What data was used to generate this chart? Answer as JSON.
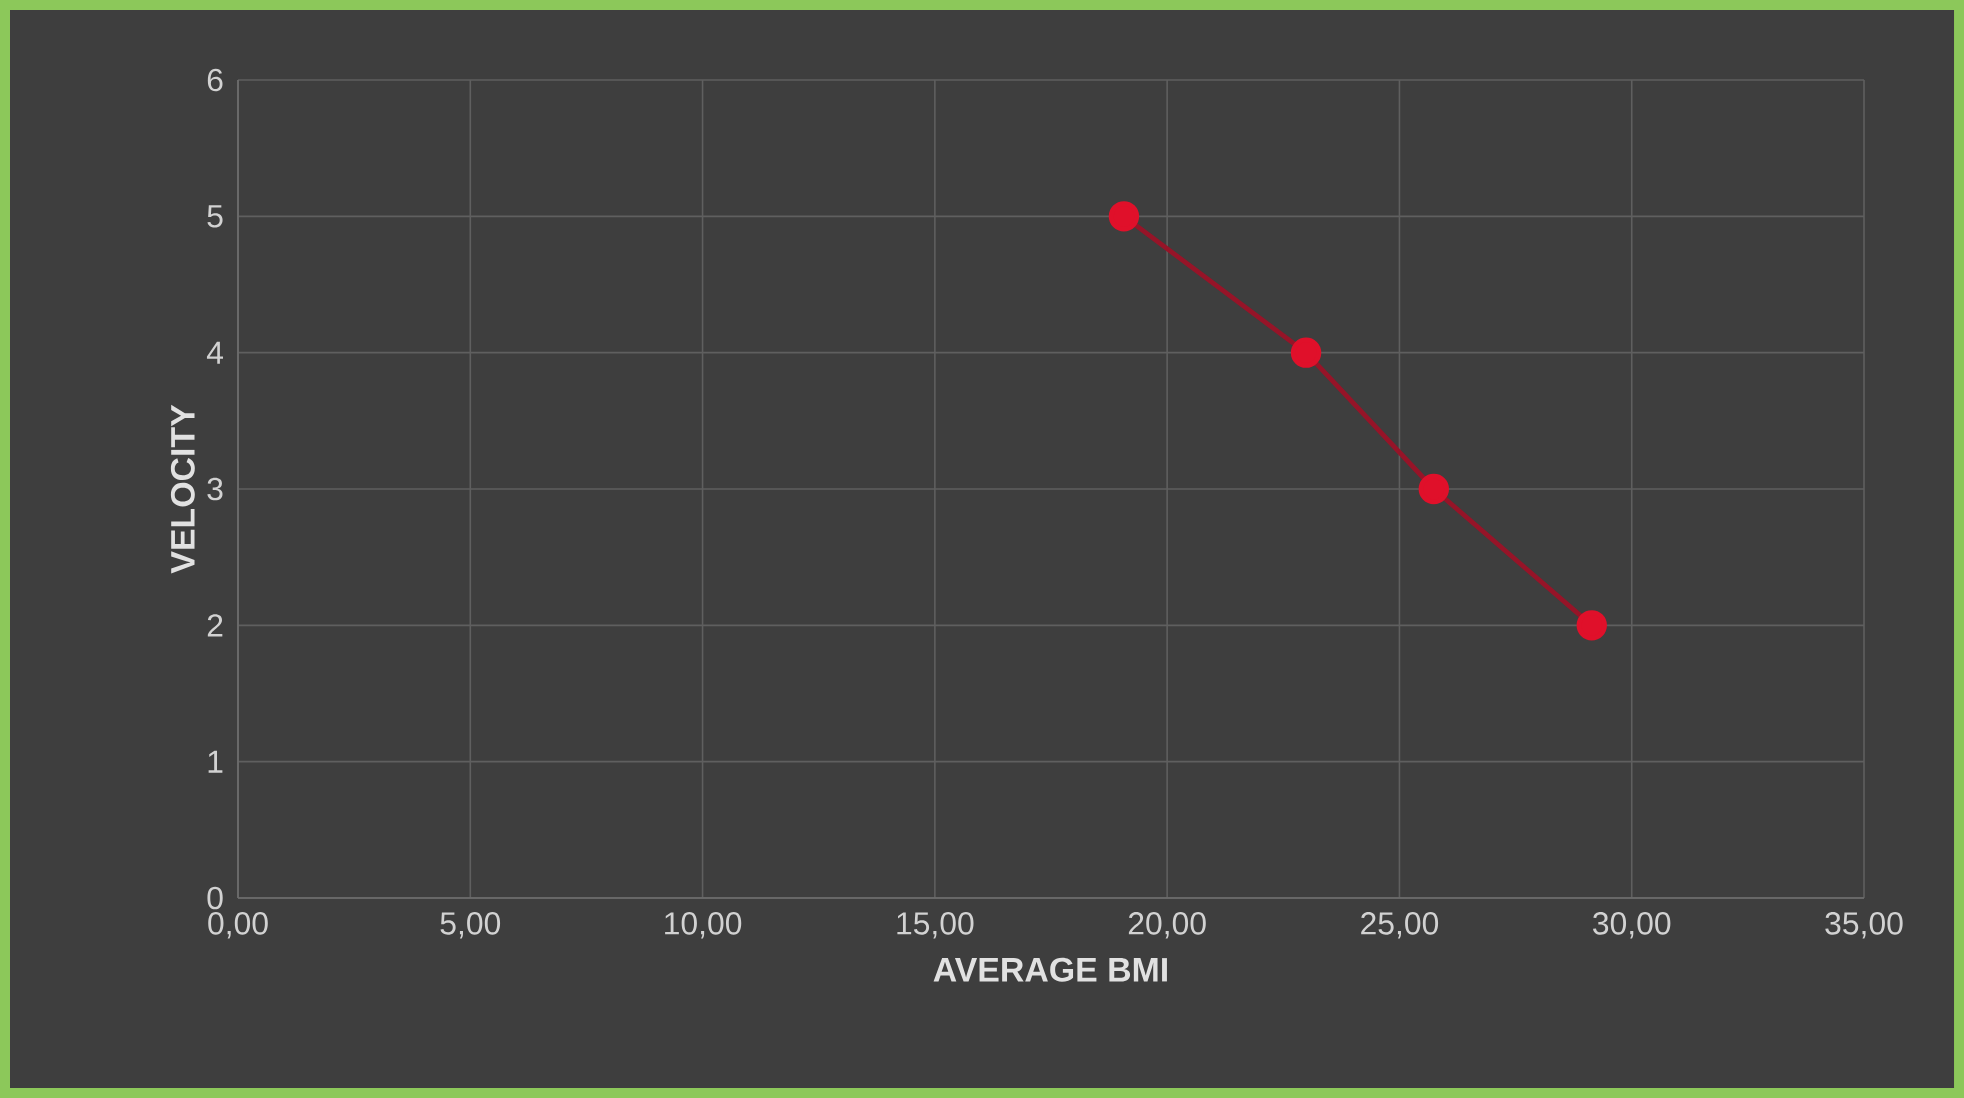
{
  "chart_data": {
    "type": "line",
    "xlabel": "AVERAGE BMI",
    "ylabel": "VELOCITY",
    "x": [
      19.07,
      22.99,
      25.74,
      29.14
    ],
    "series": [
      {
        "color": "#e0102a",
        "values": [
          5,
          4,
          3,
          2
        ]
      }
    ],
    "xlim": [
      0,
      35
    ],
    "ylim": [
      0,
      6
    ],
    "xticks": [
      {
        "value": 0,
        "label": "0,00"
      },
      {
        "value": 5,
        "label": "5,00"
      },
      {
        "value": 10,
        "label": "10,00"
      },
      {
        "value": 15,
        "label": "15,00"
      },
      {
        "value": 20,
        "label": "20,00"
      },
      {
        "value": 25,
        "label": "25,00"
      },
      {
        "value": 30,
        "label": "30,00"
      },
      {
        "value": 35,
        "label": "35,00"
      }
    ],
    "yticks": [
      0,
      1,
      2,
      3,
      4,
      5,
      6
    ],
    "grid": true,
    "marker": "circle",
    "line_style": "solid"
  }
}
